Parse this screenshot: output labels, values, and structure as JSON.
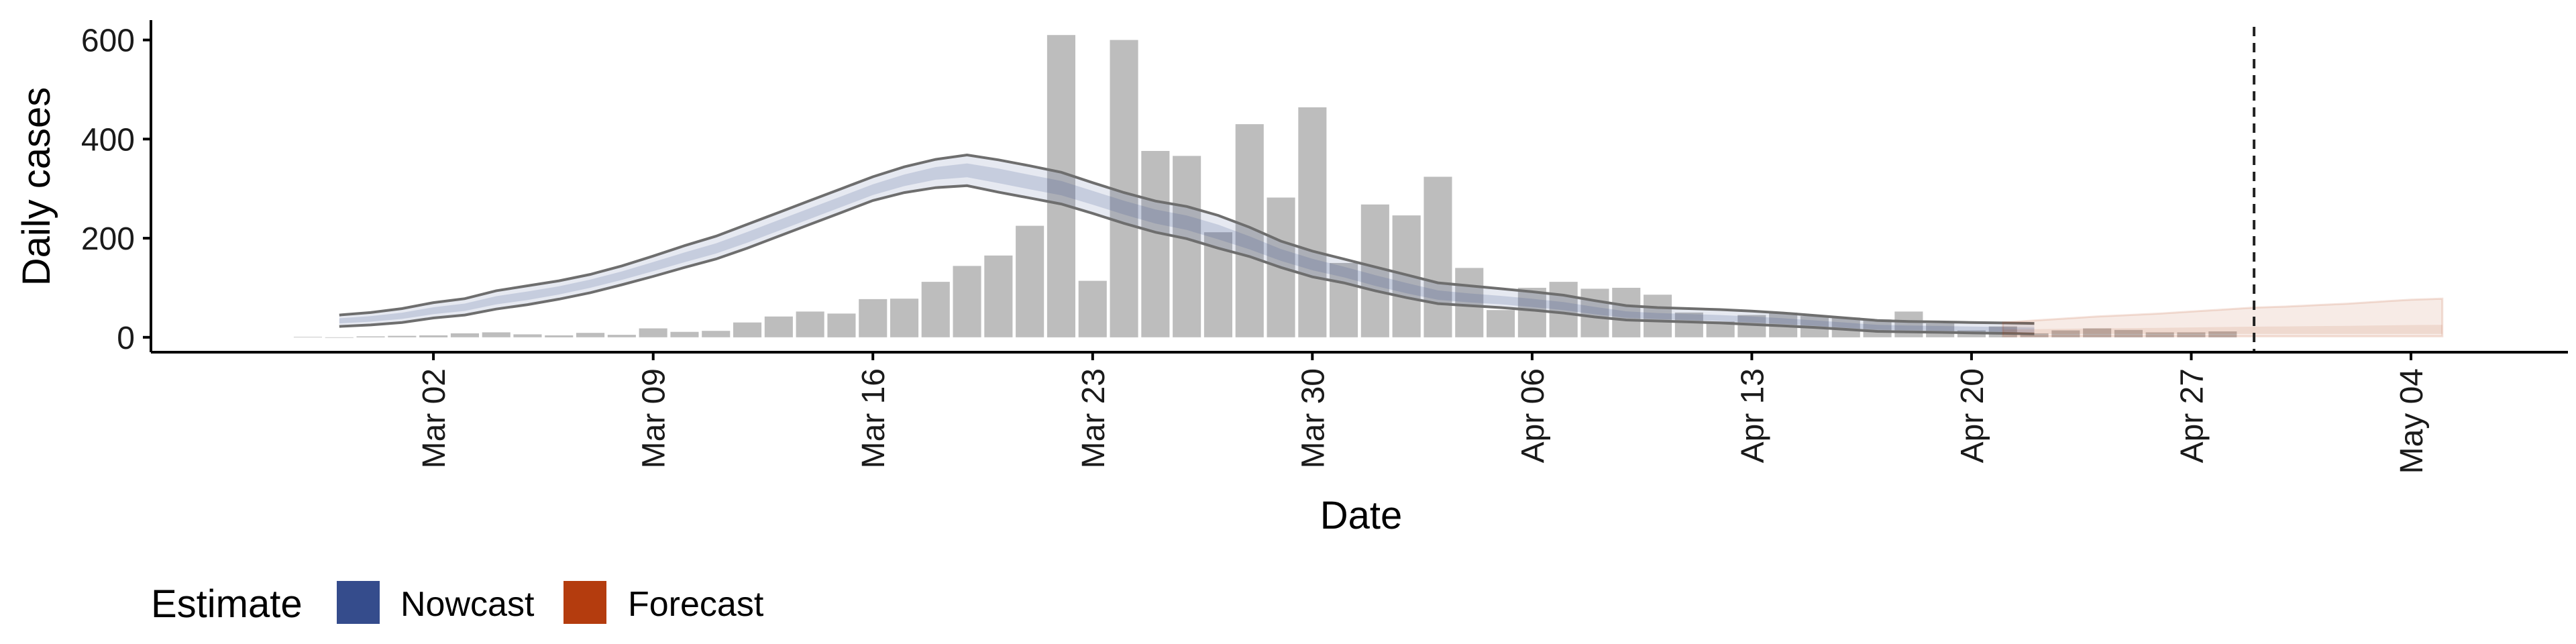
{
  "chart_data": {
    "type": "bar",
    "xlabel": "Date",
    "ylabel": "Daily cases",
    "ylim": [
      -30,
      640
    ],
    "xlim": [
      "2020-02-22",
      "2020-05-09"
    ],
    "y_ticks": [
      0,
      200,
      400,
      600
    ],
    "x_ticks": [
      {
        "date": "2020-03-02",
        "label": "Mar 02"
      },
      {
        "date": "2020-03-09",
        "label": "Mar 09"
      },
      {
        "date": "2020-03-16",
        "label": "Mar 16"
      },
      {
        "date": "2020-03-23",
        "label": "Mar 23"
      },
      {
        "date": "2020-03-30",
        "label": "Mar 30"
      },
      {
        "date": "2020-04-06",
        "label": "Apr 06"
      },
      {
        "date": "2020-04-13",
        "label": "Apr 13"
      },
      {
        "date": "2020-04-20",
        "label": "Apr 20"
      },
      {
        "date": "2020-04-27",
        "label": "Apr 27"
      },
      {
        "date": "2020-05-04",
        "label": "May 04"
      }
    ],
    "bar_color": "#bdbdbd",
    "cases": {
      "first_date": "2020-02-27",
      "values": [
        1,
        0,
        2,
        3,
        4,
        8,
        10,
        6,
        4,
        9,
        5,
        18,
        11,
        13,
        30,
        42,
        52,
        48,
        77,
        78,
        112,
        144,
        165,
        225,
        610,
        114,
        600,
        376,
        366,
        212,
        430,
        282,
        464,
        150,
        268,
        246,
        324,
        140,
        55,
        100,
        112,
        98,
        100,
        86,
        50,
        32,
        45,
        50,
        43,
        40,
        36,
        52,
        28,
        14,
        22,
        8,
        14,
        18,
        15,
        10,
        10,
        12
      ]
    },
    "nowcast": {
      "first_date": "2020-02-28",
      "color": "#354c8c",
      "mid": [
        33,
        37,
        43,
        53,
        60,
        74,
        83,
        94,
        108,
        124,
        142,
        160,
        178,
        200,
        224,
        248,
        272,
        296,
        316,
        331,
        337,
        326,
        313,
        301,
        282,
        262,
        244,
        231,
        212,
        189,
        165,
        146,
        130,
        112,
        96,
        82,
        76,
        72,
        66,
        60,
        51,
        43,
        40,
        38,
        36,
        33,
        30,
        26,
        22,
        18,
        17,
        16,
        15,
        14,
        13
      ],
      "lower": [
        22,
        25,
        30,
        39,
        45,
        57,
        66,
        77,
        90,
        106,
        123,
        141,
        158,
        180,
        204,
        228,
        252,
        276,
        292,
        302,
        306,
        293,
        281,
        269,
        250,
        230,
        212,
        199,
        180,
        163,
        141,
        122,
        110,
        94,
        80,
        68,
        64,
        60,
        55,
        49,
        41,
        35,
        33,
        31,
        29,
        26,
        23,
        20,
        16,
        12,
        11,
        10,
        9,
        8,
        7
      ],
      "upper": [
        45,
        50,
        58,
        70,
        78,
        94,
        104,
        114,
        127,
        144,
        164,
        185,
        204,
        228,
        252,
        276,
        300,
        324,
        344,
        359,
        368,
        358,
        346,
        333,
        312,
        292,
        275,
        264,
        246,
        222,
        194,
        174,
        158,
        142,
        126,
        110,
        104,
        98,
        92,
        85,
        74,
        64,
        60,
        58,
        56,
        53,
        49,
        44,
        39,
        34,
        32,
        31,
        30,
        29,
        28
      ]
    },
    "forecast": {
      "first_date": "2020-04-21",
      "color": "#b43c0e",
      "mid": [
        12,
        12,
        12,
        12,
        12,
        12,
        12,
        12,
        12,
        12,
        12,
        12,
        12,
        12,
        12
      ],
      "lower": [
        2,
        2,
        2,
        2,
        2,
        2,
        2,
        2,
        2,
        2,
        2,
        2,
        2,
        2,
        2
      ],
      "upper": [
        30,
        34,
        38,
        42,
        45,
        48,
        52,
        56,
        60,
        62,
        65,
        68,
        72,
        76,
        78
      ]
    },
    "vline_date": "2020-04-29",
    "legend": {
      "title": "Estimate",
      "items": [
        {
          "label": "Nowcast",
          "color": "#354c8c"
        },
        {
          "label": "Forecast",
          "color": "#b43c0e"
        }
      ],
      "position": "bottom-left"
    }
  }
}
